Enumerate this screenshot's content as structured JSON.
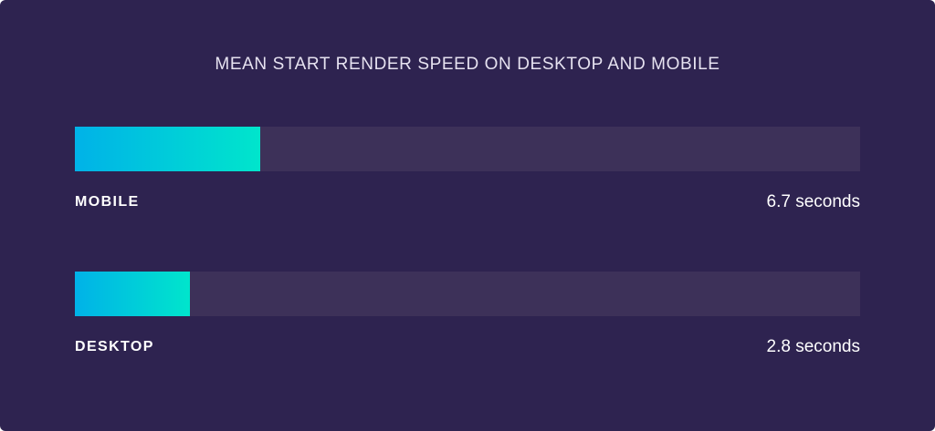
{
  "chart_data": {
    "type": "bar",
    "orientation": "horizontal",
    "title": "MEAN START RENDER SPEED ON DESKTOP AND MOBILE",
    "categories": [
      "MOBILE",
      "DESKTOP"
    ],
    "values": [
      6.7,
      2.8
    ],
    "value_labels": [
      "6.7 seconds",
      "2.8 seconds"
    ],
    "unit": "seconds",
    "fill_percent": [
      23.6,
      14.7
    ],
    "grid": false,
    "colors": {
      "background": "#2e2350",
      "track": "#3d3159",
      "gradient_start": "#00b2e8",
      "gradient_end": "#00e5cc"
    }
  }
}
